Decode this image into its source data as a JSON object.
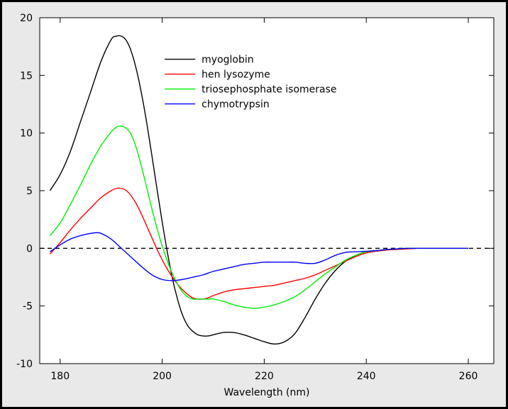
{
  "chart_data": {
    "type": "line",
    "title": "",
    "xlabel": "Wavelength (nm)",
    "ylabel": "",
    "xlim": [
      176,
      265
    ],
    "ylim": [
      -10,
      20
    ],
    "xticks": [
      180,
      200,
      220,
      240,
      260
    ],
    "yticks": [
      -10,
      -5,
      0,
      5,
      10,
      15,
      20
    ],
    "xtick_labels": [
      "180",
      "200",
      "220",
      "240",
      "260"
    ],
    "ytick_labels": [
      "-10",
      "-5",
      "0",
      "5",
      "10",
      "15",
      "20"
    ],
    "zero_line": "dashed",
    "legend_position": "top-right",
    "series": [
      {
        "name": "myoglobin",
        "color": "#000000",
        "x": [
          178,
          180,
          182,
          184,
          186,
          188,
          190,
          191,
          192,
          193,
          194,
          195,
          196,
          197,
          198,
          199,
          200,
          201,
          202,
          203,
          204,
          205,
          206,
          207,
          208,
          209,
          210,
          212,
          214,
          216,
          218,
          220,
          222,
          224,
          226,
          228,
          230,
          232,
          234,
          236,
          238,
          240,
          242,
          244,
          246,
          248,
          250,
          252,
          255,
          258,
          260
        ],
        "y": [
          5.0,
          6.4,
          8.4,
          11.0,
          13.6,
          16.2,
          18.1,
          18.4,
          18.4,
          18.0,
          17.0,
          15.4,
          13.3,
          10.8,
          8.0,
          5.1,
          2.3,
          -0.3,
          -2.6,
          -4.4,
          -5.8,
          -6.7,
          -7.2,
          -7.5,
          -7.6,
          -7.6,
          -7.5,
          -7.3,
          -7.3,
          -7.5,
          -7.8,
          -8.1,
          -8.3,
          -8.1,
          -7.4,
          -6.0,
          -4.4,
          -3.0,
          -1.9,
          -1.1,
          -0.6,
          -0.3,
          -0.2,
          -0.1,
          -0.05,
          0.0,
          0.0,
          0.0,
          0.0,
          0.0,
          0.0
        ]
      },
      {
        "name": "hen lysozyme",
        "color": "#ff0000",
        "x": [
          178,
          180,
          182,
          184,
          186,
          188,
          190,
          191,
          192,
          193,
          194,
          195,
          196,
          197,
          198,
          199,
          200,
          201,
          202,
          203,
          204,
          205,
          206,
          207,
          208,
          209,
          210,
          212,
          214,
          216,
          218,
          220,
          222,
          224,
          226,
          228,
          230,
          232,
          234,
          236,
          238,
          240,
          242,
          244,
          246,
          248,
          250,
          252,
          255,
          258,
          260
        ],
        "y": [
          -0.5,
          0.5,
          1.6,
          2.6,
          3.5,
          4.4,
          5.0,
          5.2,
          5.2,
          5.0,
          4.5,
          3.8,
          2.9,
          1.9,
          0.9,
          -0.1,
          -1.0,
          -1.8,
          -2.5,
          -3.1,
          -3.6,
          -4.0,
          -4.3,
          -4.4,
          -4.4,
          -4.3,
          -4.1,
          -3.8,
          -3.6,
          -3.5,
          -3.4,
          -3.3,
          -3.2,
          -3.0,
          -2.8,
          -2.6,
          -2.3,
          -1.9,
          -1.5,
          -1.1,
          -0.7,
          -0.4,
          -0.25,
          -0.15,
          -0.1,
          -0.05,
          0.0,
          0.0,
          0.0,
          0.0,
          0.0
        ]
      },
      {
        "name": "triosephosphate isomerase",
        "color": "#00ee00",
        "x": [
          178,
          180,
          182,
          184,
          186,
          188,
          190,
          191,
          192,
          193,
          194,
          195,
          196,
          197,
          198,
          199,
          200,
          201,
          202,
          203,
          204,
          205,
          206,
          207,
          208,
          209,
          210,
          212,
          214,
          216,
          218,
          220,
          222,
          224,
          226,
          228,
          230,
          232,
          234,
          236,
          238,
          240,
          242,
          244,
          246,
          248,
          250,
          252,
          255,
          258,
          260
        ],
        "y": [
          1.1,
          2.2,
          3.8,
          5.5,
          7.3,
          8.9,
          10.1,
          10.5,
          10.6,
          10.4,
          9.8,
          8.6,
          7.0,
          5.2,
          3.4,
          1.7,
          0.2,
          -1.1,
          -2.2,
          -3.1,
          -3.8,
          -4.2,
          -4.4,
          -4.4,
          -4.4,
          -4.4,
          -4.4,
          -4.6,
          -4.9,
          -5.1,
          -5.2,
          -5.1,
          -4.9,
          -4.6,
          -4.2,
          -3.6,
          -2.9,
          -2.2,
          -1.6,
          -1.0,
          -0.6,
          -0.3,
          -0.2,
          -0.1,
          -0.05,
          0.0,
          0.0,
          0.0,
          0.0,
          0.0,
          0.0
        ]
      },
      {
        "name": "chymotrypsin",
        "color": "#0000ff",
        "x": [
          178,
          180,
          182,
          184,
          186,
          187,
          188,
          190,
          192,
          194,
          196,
          198,
          200,
          202,
          204,
          206,
          208,
          210,
          212,
          214,
          216,
          218,
          220,
          222,
          224,
          226,
          228,
          230,
          232,
          234,
          236,
          238,
          240,
          242,
          244,
          246,
          248,
          250,
          252,
          255,
          258,
          260
        ],
        "y": [
          -0.3,
          0.3,
          0.8,
          1.1,
          1.3,
          1.35,
          1.3,
          0.8,
          0.0,
          -0.8,
          -1.6,
          -2.3,
          -2.7,
          -2.8,
          -2.7,
          -2.5,
          -2.3,
          -2.0,
          -1.8,
          -1.6,
          -1.4,
          -1.3,
          -1.2,
          -1.2,
          -1.2,
          -1.2,
          -1.3,
          -1.3,
          -1.0,
          -0.6,
          -0.35,
          -0.3,
          -0.25,
          -0.2,
          -0.1,
          -0.05,
          0.0,
          0.0,
          0.0,
          0.0,
          0.0,
          0.0
        ]
      }
    ]
  }
}
